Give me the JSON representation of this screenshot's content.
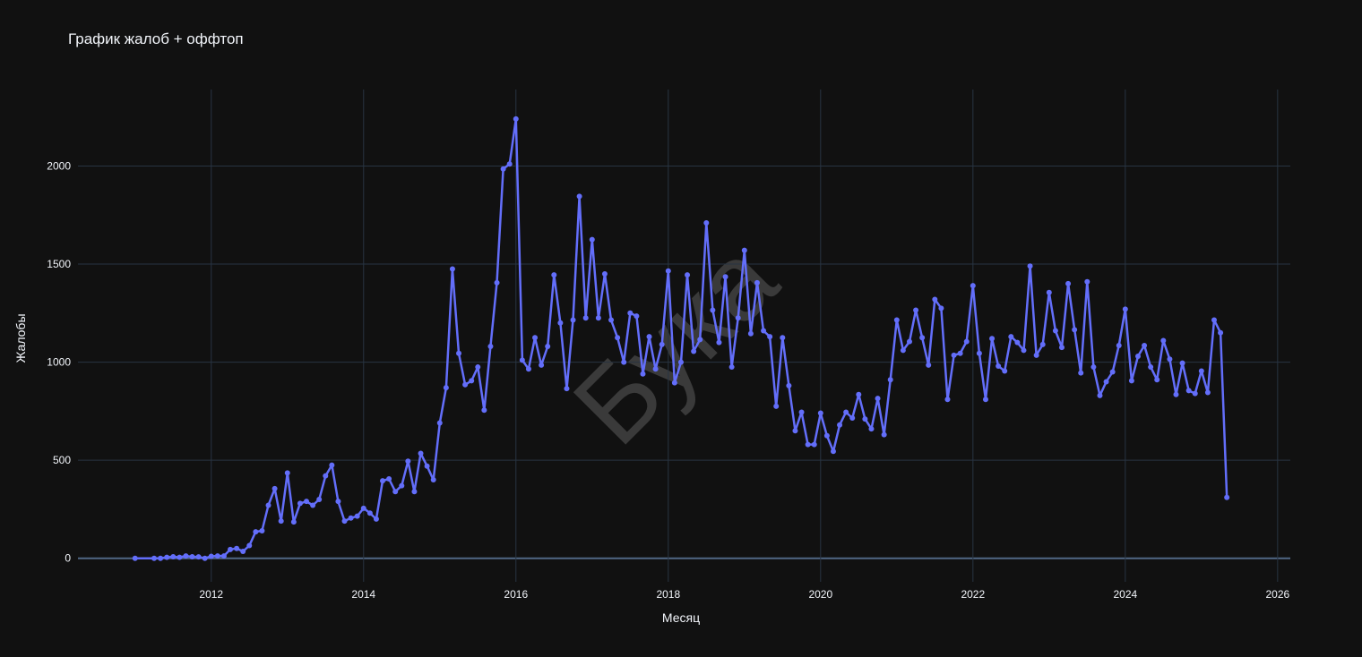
{
  "chart_data": {
    "type": "line",
    "title": "График жалоб + оффтоп",
    "xlabel": "Месяц",
    "ylabel": "Жалобы",
    "watermark": "Бука",
    "x": [
      "2011-01",
      "2011-04",
      "2011-05",
      "2011-06",
      "2011-07",
      "2011-08",
      "2011-09",
      "2011-10",
      "2011-11",
      "2011-12",
      "2012-01",
      "2012-02",
      "2012-03",
      "2012-04",
      "2012-05",
      "2012-06",
      "2012-07",
      "2012-08",
      "2012-09",
      "2012-10",
      "2012-11",
      "2012-12",
      "2013-01",
      "2013-02",
      "2013-03",
      "2013-04",
      "2013-05",
      "2013-06",
      "2013-07",
      "2013-08",
      "2013-09",
      "2013-10",
      "2013-11",
      "2013-12",
      "2014-01",
      "2014-02",
      "2014-03",
      "2014-04",
      "2014-05",
      "2014-06",
      "2014-07",
      "2014-08",
      "2014-09",
      "2014-10",
      "2014-11",
      "2014-12",
      "2015-01",
      "2015-02",
      "2015-03",
      "2015-04",
      "2015-05",
      "2015-06",
      "2015-07",
      "2015-08",
      "2015-09",
      "2015-10",
      "2015-11",
      "2015-12",
      "2016-01",
      "2016-02",
      "2016-03",
      "2016-04",
      "2016-05",
      "2016-06",
      "2016-07",
      "2016-08",
      "2016-09",
      "2016-10",
      "2016-11",
      "2016-12",
      "2017-01",
      "2017-02",
      "2017-03",
      "2017-04",
      "2017-05",
      "2017-06",
      "2017-07",
      "2017-08",
      "2017-09",
      "2017-10",
      "2017-11",
      "2017-12",
      "2018-01",
      "2018-02",
      "2018-03",
      "2018-04",
      "2018-05",
      "2018-06",
      "2018-07",
      "2018-08",
      "2018-09",
      "2018-10",
      "2018-11",
      "2018-12",
      "2019-01",
      "2019-02",
      "2019-03",
      "2019-04",
      "2019-05",
      "2019-06",
      "2019-07",
      "2019-08",
      "2019-09",
      "2019-10",
      "2019-11",
      "2019-12",
      "2020-01",
      "2020-02",
      "2020-03",
      "2020-04",
      "2020-05",
      "2020-06",
      "2020-07",
      "2020-08",
      "2020-09",
      "2020-10",
      "2020-11",
      "2020-12",
      "2021-01",
      "2021-02",
      "2021-03",
      "2021-04",
      "2021-05",
      "2021-06",
      "2021-07",
      "2021-08",
      "2021-09",
      "2021-10",
      "2021-11",
      "2021-12",
      "2022-01",
      "2022-02",
      "2022-03",
      "2022-04",
      "2022-05",
      "2022-06",
      "2022-07",
      "2022-08",
      "2022-09",
      "2022-10",
      "2022-11",
      "2022-12",
      "2023-01",
      "2023-02",
      "2023-03",
      "2023-04",
      "2023-05",
      "2023-06",
      "2023-07",
      "2023-08",
      "2023-09",
      "2023-10",
      "2023-11",
      "2023-12",
      "2024-01",
      "2024-02",
      "2024-03",
      "2024-04",
      "2024-05",
      "2024-06",
      "2024-07",
      "2024-08",
      "2024-09",
      "2024-10",
      "2024-11",
      "2024-12",
      "2025-01",
      "2025-02",
      "2025-03",
      "2025-04",
      "2025-05"
    ],
    "series": [
      {
        "name": "Жалобы",
        "color": "#636efa",
        "values": [
          0,
          0,
          0,
          5,
          8,
          5,
          12,
          8,
          7,
          0,
          10,
          12,
          12,
          45,
          50,
          35,
          65,
          135,
          140,
          270,
          355,
          190,
          435,
          185,
          280,
          290,
          270,
          300,
          420,
          475,
          290,
          190,
          205,
          215,
          255,
          230,
          200,
          395,
          405,
          340,
          370,
          495,
          340,
          535,
          470,
          400,
          690,
          870,
          1475,
          1045,
          885,
          905,
          975,
          755,
          1080,
          1405,
          1985,
          2010,
          2240,
          1010,
          965,
          1125,
          985,
          1080,
          1445,
          1200,
          865,
          1215,
          1845,
          1225,
          1625,
          1225,
          1450,
          1215,
          1125,
          1000,
          1250,
          1235,
          940,
          1130,
          965,
          1090,
          1465,
          895,
          1000,
          1445,
          1055,
          1115,
          1710,
          1265,
          1100,
          1435,
          975,
          1225,
          1570,
          1145,
          1405,
          1160,
          1130,
          775,
          1125,
          880,
          650,
          745,
          580,
          580,
          740,
          625,
          545,
          680,
          745,
          715,
          835,
          710,
          660,
          815,
          630,
          910,
          1215,
          1060,
          1105,
          1265,
          1125,
          985,
          1320,
          1275,
          810,
          1035,
          1045,
          1105,
          1390,
          1045,
          810,
          1120,
          980,
          955,
          1130,
          1100,
          1060,
          1490,
          1035,
          1090,
          1355,
          1160,
          1075,
          1400,
          1165,
          945,
          1410,
          975,
          830,
          900,
          950,
          1085,
          1270,
          905,
          1030,
          1085,
          975,
          910,
          1110,
          1015,
          835,
          995,
          855,
          840,
          955,
          845,
          1215,
          1150,
          310
        ]
      }
    ],
    "xlim": [
      "2010-04",
      "2026-03"
    ],
    "xticks": [
      "2012",
      "2014",
      "2016",
      "2018",
      "2020",
      "2022",
      "2024",
      "2026"
    ],
    "ylim": [
      -120,
      2390
    ],
    "yticks": [
      0,
      500,
      1000,
      1500,
      2000
    ],
    "grid": true
  }
}
